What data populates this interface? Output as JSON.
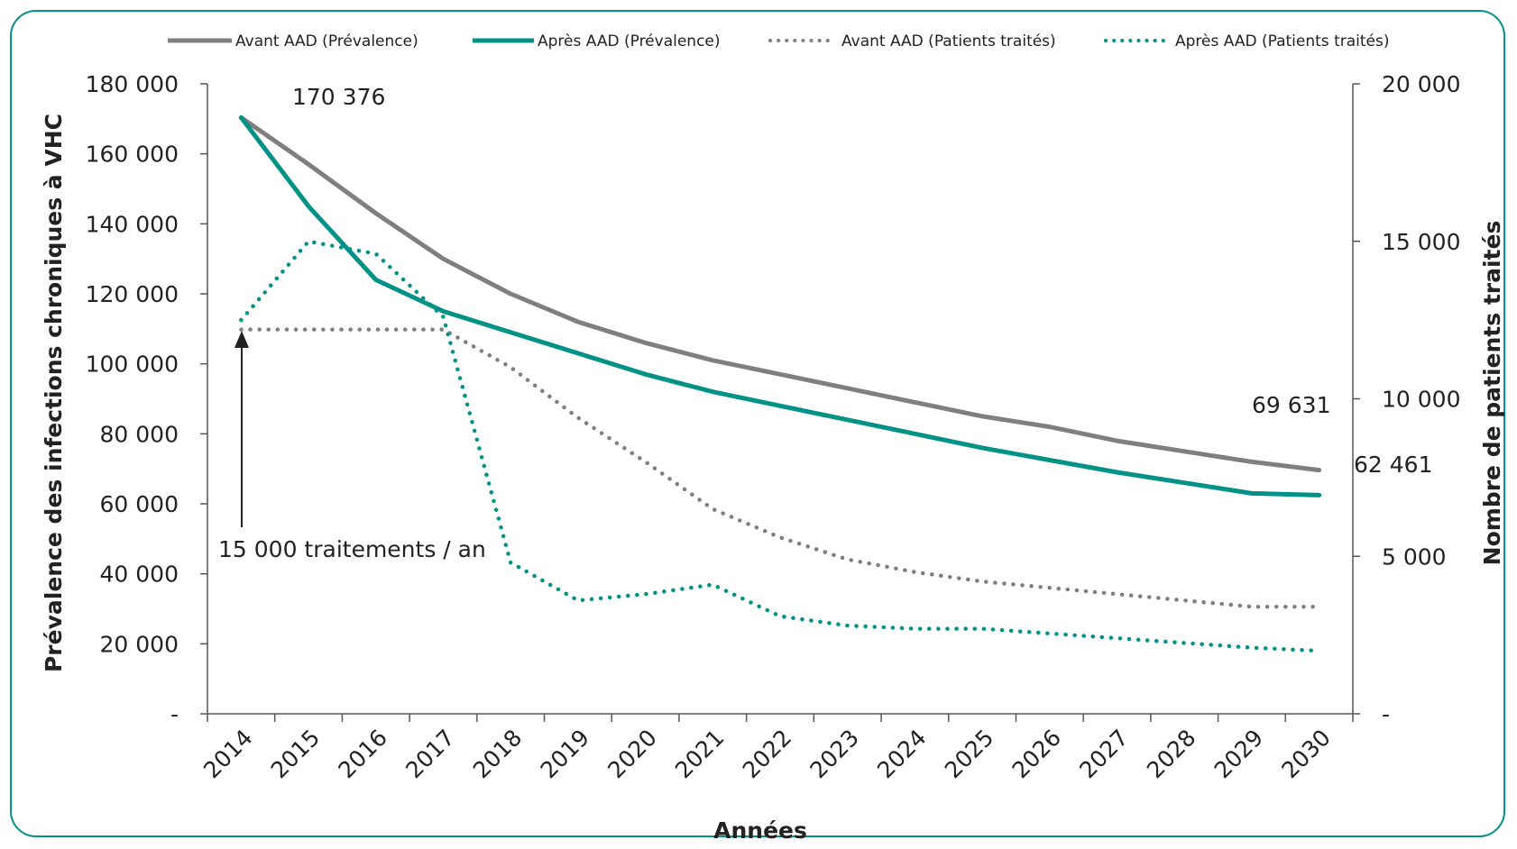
{
  "chart_data": {
    "type": "line",
    "categories": [
      "2014",
      "2015",
      "2016",
      "2017",
      "2018",
      "2019",
      "2020",
      "2021",
      "2022",
      "2023",
      "2024",
      "2025",
      "2026",
      "2027",
      "2028",
      "2029",
      "2030"
    ],
    "xlabel": "Années",
    "ylabel": "Prévalence des infections chroniques à VHC",
    "y2label": "Nombre de patients traités",
    "ylim": [
      0,
      180000
    ],
    "y2lim": [
      0,
      20000
    ],
    "yticks": [
      "-",
      "20 000",
      "40 000",
      "60 000",
      "80 000",
      "100 000",
      "120 000",
      "140 000",
      "160 000",
      "180 000"
    ],
    "y2ticks": [
      "-",
      "5 000",
      "10 000",
      "15 000",
      "20 000"
    ],
    "grid": false,
    "legend_position": "top",
    "series": [
      {
        "name": "Avant AAD (Prévalence)",
        "axis": "left",
        "style": "solid",
        "color": "#7f7f7f",
        "values": [
          170376,
          157000,
          143000,
          130000,
          120000,
          112000,
          106000,
          101000,
          97000,
          93000,
          89000,
          85000,
          82000,
          78000,
          75000,
          72000,
          69631
        ]
      },
      {
        "name": "Après AAD (Prévalence)",
        "axis": "left",
        "style": "solid",
        "color": "#009286",
        "values": [
          170376,
          145000,
          124000,
          115000,
          109000,
          103000,
          97000,
          92000,
          88000,
          84000,
          80000,
          76000,
          72500,
          69000,
          66000,
          63000,
          62461
        ]
      },
      {
        "name": "Avant AAD (Patients traités)",
        "axis": "right",
        "style": "dotted",
        "color": "#7f7f7f",
        "values": [
          12200,
          12200,
          12200,
          12200,
          11000,
          9400,
          8000,
          6500,
          5600,
          4900,
          4500,
          4200,
          4000,
          3800,
          3600,
          3400,
          3400
        ]
      },
      {
        "name": "Après AAD (Patients traités)",
        "axis": "right",
        "style": "dotted",
        "color": "#009286",
        "values": [
          12500,
          15000,
          14600,
          12600,
          4800,
          3600,
          3800,
          4100,
          3100,
          2800,
          2700,
          2700,
          2550,
          2400,
          2250,
          2100,
          2000
        ]
      }
    ],
    "annotations": {
      "start_value": "170 376",
      "end_value_before": "69 631",
      "end_value_after": "62 461",
      "arrow_note": "15 000 traitements / an"
    }
  },
  "colors": {
    "frame": "#009286",
    "teal": "#009286",
    "grey": "#7f7f7f",
    "axis": "#555555"
  }
}
